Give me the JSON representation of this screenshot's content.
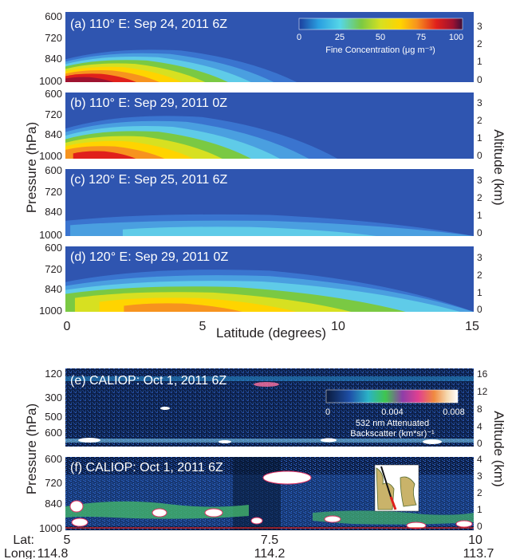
{
  "figure": {
    "ylabel_pressure_top": "Pressure (hPa)",
    "ylabel_altitude_top": "Altitude (km)",
    "ylabel_pressure_bottom": "Pressure (hPa)",
    "ylabel_altitude_bottom": "Altitude (km)",
    "xlabel_top": "Latitude (degrees)",
    "lat_label": "Lat:",
    "long_label": "Long:"
  },
  "colors": {
    "bg_blue": "#2f55b0",
    "bg_dark": "#0a1a3c",
    "cyan": "#4fc8ea",
    "green": "#7ac943",
    "yellow": "#ffe000",
    "orange": "#f7931e",
    "red": "#e0201b"
  },
  "chart_data": [
    {
      "type": "heatmap",
      "title": "(a) 110° E: Sep 24, 2011 6Z",
      "x": [
        0,
        5,
        10,
        15
      ],
      "y_pressure_ticks": [
        "600",
        "720",
        "840",
        "1000"
      ],
      "y_altitude_ticks": [
        "3",
        "2",
        "1",
        "0"
      ],
      "colorbar": {
        "label": "Fine Concentration (μg m⁻³)",
        "ticks": [
          "0",
          "25",
          "50",
          "75",
          "100"
        ],
        "range": [
          0,
          100
        ]
      },
      "plume": {
        "max_lat": 8,
        "peak_value": 95,
        "peak_lat": 0.5,
        "top_pressure": 800
      }
    },
    {
      "type": "heatmap",
      "title": "(b) 110° E: Sep 29, 2011 0Z",
      "x": [
        0,
        5,
        10,
        15
      ],
      "y_pressure_ticks": [
        "600",
        "720",
        "840",
        "1000"
      ],
      "y_altitude_ticks": [
        "3",
        "2",
        "1",
        "0"
      ],
      "plume": {
        "max_lat": 9,
        "peak_value": 80,
        "peak_lat": 1,
        "top_pressure": 720
      }
    },
    {
      "type": "heatmap",
      "title": "(c) 120° E: Sep 25, 2011 6Z",
      "x": [
        0,
        5,
        10,
        15
      ],
      "y_pressure_ticks": [
        "600",
        "720",
        "840",
        "1000"
      ],
      "y_altitude_ticks": [
        "3",
        "2",
        "1",
        "0"
      ],
      "plume": {
        "max_lat": 15,
        "peak_value": 15,
        "peak_lat": 5,
        "top_pressure": 860
      }
    },
    {
      "type": "heatmap",
      "title": "(d) 120° E: Sep 29, 2011 0Z",
      "x": [
        0,
        5,
        10,
        15
      ],
      "x_ticks": [
        "0",
        "5",
        "10",
        "15"
      ],
      "y_pressure_ticks": [
        "600",
        "720",
        "840",
        "1000"
      ],
      "y_altitude_ticks": [
        "3",
        "2",
        "1",
        "0"
      ],
      "plume": {
        "max_lat": 15,
        "peak_value": 70,
        "peak_lat": 3.5,
        "top_pressure": 720
      }
    },
    {
      "type": "heatmap",
      "title": "(e) CALIOP: Oct 1, 2011 6Z",
      "y_pressure_ticks": [
        "120",
        "300",
        "500",
        "600"
      ],
      "y_altitude_ticks": [
        "16",
        "12",
        "8",
        "4",
        "0"
      ],
      "colorbar": {
        "label_line1": "532 nm Attenuated",
        "label_line2": "Backscatter (km*sr)⁻¹",
        "ticks": [
          "0",
          "0.004",
          "0.008"
        ],
        "range": [
          0,
          0.008
        ]
      }
    },
    {
      "type": "heatmap",
      "title": "(f) CALIOP: Oct 1, 2011 6Z",
      "y_pressure_ticks": [
        "600",
        "720",
        "840",
        "1000"
      ],
      "y_altitude_ticks": [
        "4",
        "3",
        "2",
        "1",
        "0"
      ],
      "x_lat_ticks": [
        "5",
        "7.5",
        "10"
      ],
      "x_long_ticks": [
        "114.8",
        "114.2",
        "113.7"
      ]
    }
  ]
}
